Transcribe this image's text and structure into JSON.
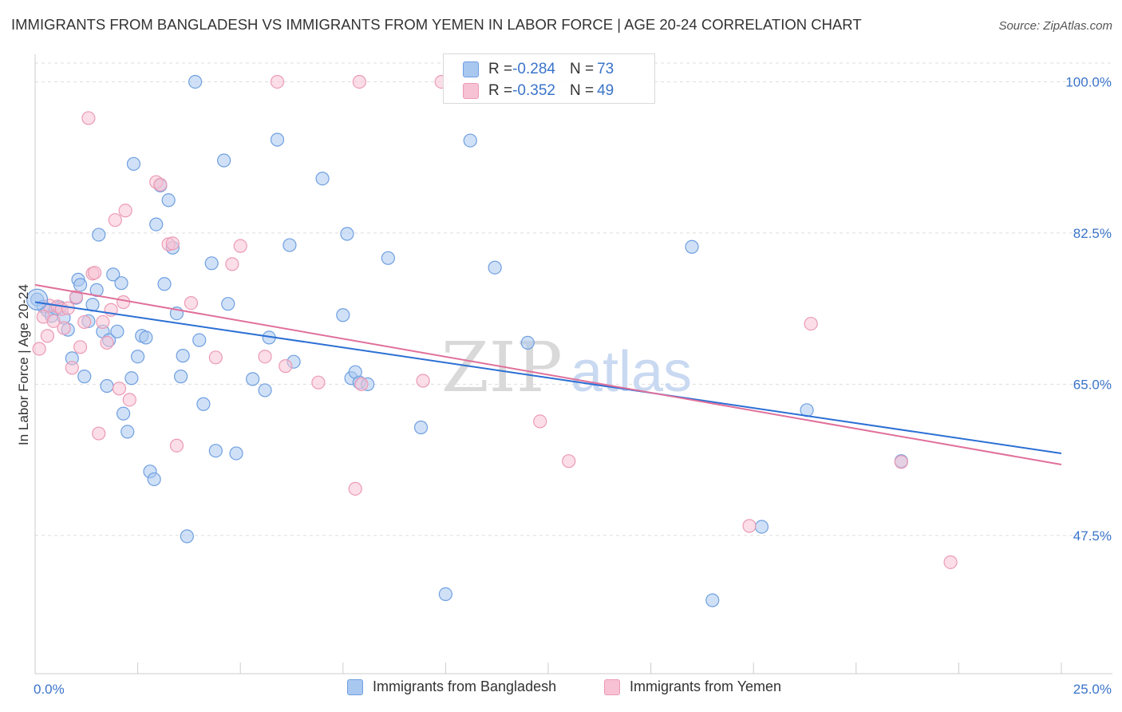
{
  "title": "IMMIGRANTS FROM BANGLADESH VS IMMIGRANTS FROM YEMEN IN LABOR FORCE | AGE 20-24 CORRELATION CHART",
  "source": "Source: ZipAtlas.com",
  "watermark": {
    "zip": "ZIP",
    "atlas": "atlas"
  },
  "legend": {
    "rows": [
      {
        "r_label": "R = ",
        "r_value": "-0.284",
        "n_label": "N = ",
        "n_value": "73"
      },
      {
        "r_label": "R = ",
        "r_value": "-0.352",
        "n_label": "N = ",
        "n_value": "49"
      }
    ]
  },
  "chart_data": {
    "type": "scatter",
    "ylabel": "In Labor Force | Age 20-24",
    "xlim": [
      0,
      25
    ],
    "ylim": [
      31.5,
      103
    ],
    "x_tick_labels": [
      {
        "value": 0,
        "label": "0.0%"
      },
      {
        "value": 25,
        "label": "25.0%"
      }
    ],
    "y_ticks": [
      {
        "value": 100,
        "label": "100.0%"
      },
      {
        "value": 82.5,
        "label": "82.5%"
      },
      {
        "value": 65,
        "label": "65.0%"
      },
      {
        "value": 47.5,
        "label": "47.5%"
      }
    ],
    "grid": "horizontal dashed",
    "series": [
      {
        "name": "Immigrants from Bangladesh",
        "color": "#6f9fe0",
        "fill": "#a9c8f0",
        "trend_color": "#2b6fd4",
        "trend": {
          "x0": 0,
          "y0": 74.5,
          "x1": 25,
          "y1": 57.0
        },
        "points": [
          [
            0.05,
            74.8
          ],
          [
            0.2,
            74.0
          ],
          [
            0.3,
            73.5
          ],
          [
            0.4,
            72.9
          ],
          [
            0.5,
            73.8
          ],
          [
            0.6,
            73.9
          ],
          [
            0.7,
            72.7
          ],
          [
            0.8,
            71.3
          ],
          [
            0.9,
            68.0
          ],
          [
            1.0,
            75.0
          ],
          [
            1.05,
            77.1
          ],
          [
            1.1,
            76.5
          ],
          [
            1.2,
            65.9
          ],
          [
            1.3,
            72.3
          ],
          [
            1.4,
            74.2
          ],
          [
            1.5,
            75.9
          ],
          [
            1.55,
            82.3
          ],
          [
            1.65,
            71.1
          ],
          [
            1.75,
            64.8
          ],
          [
            1.8,
            70.1
          ],
          [
            1.9,
            77.7
          ],
          [
            2.0,
            71.1
          ],
          [
            2.1,
            76.7
          ],
          [
            2.15,
            61.6
          ],
          [
            2.25,
            59.5
          ],
          [
            2.35,
            65.7
          ],
          [
            2.4,
            90.5
          ],
          [
            2.5,
            68.2
          ],
          [
            2.6,
            70.6
          ],
          [
            2.7,
            70.4
          ],
          [
            2.8,
            54.9
          ],
          [
            2.9,
            54.0
          ],
          [
            2.95,
            83.5
          ],
          [
            3.05,
            88.0
          ],
          [
            3.15,
            76.6
          ],
          [
            3.25,
            86.3
          ],
          [
            3.35,
            80.8
          ],
          [
            3.45,
            73.2
          ],
          [
            3.55,
            65.9
          ],
          [
            3.6,
            68.3
          ],
          [
            3.7,
            47.4
          ],
          [
            3.9,
            100.0
          ],
          [
            4.0,
            70.1
          ],
          [
            4.1,
            62.7
          ],
          [
            4.3,
            79.0
          ],
          [
            4.4,
            57.3
          ],
          [
            4.6,
            90.9
          ],
          [
            4.7,
            74.3
          ],
          [
            4.9,
            57.0
          ],
          [
            5.3,
            65.6
          ],
          [
            5.6,
            64.3
          ],
          [
            5.7,
            70.4
          ],
          [
            5.9,
            93.3
          ],
          [
            6.2,
            81.1
          ],
          [
            6.3,
            67.6
          ],
          [
            7.0,
            88.8
          ],
          [
            7.5,
            73.0
          ],
          [
            7.6,
            82.4
          ],
          [
            7.7,
            65.7
          ],
          [
            7.8,
            66.4
          ],
          [
            7.9,
            65.2
          ],
          [
            8.1,
            65.0
          ],
          [
            8.6,
            79.6
          ],
          [
            9.4,
            60.0
          ],
          [
            10.0,
            40.7
          ],
          [
            10.6,
            93.2
          ],
          [
            11.2,
            78.5
          ],
          [
            12.0,
            69.8
          ],
          [
            16.0,
            80.9
          ],
          [
            16.5,
            40.0
          ],
          [
            17.7,
            48.5
          ],
          [
            18.8,
            62.0
          ],
          [
            21.1,
            56.1
          ]
        ]
      },
      {
        "name": "Immigrants from Yemen",
        "color": "#ec9ab5",
        "fill": "#f7c2d3",
        "trend_color": "#e0709a",
        "trend": {
          "x0": 0,
          "y0": 76.5,
          "x1": 25,
          "y1": 55.7
        },
        "points": [
          [
            0.1,
            69.1
          ],
          [
            0.2,
            72.8
          ],
          [
            0.3,
            70.6
          ],
          [
            0.35,
            74.1
          ],
          [
            0.45,
            72.3
          ],
          [
            0.55,
            74.0
          ],
          [
            0.65,
            73.7
          ],
          [
            0.7,
            71.5
          ],
          [
            0.8,
            73.8
          ],
          [
            0.9,
            66.9
          ],
          [
            1.0,
            75.1
          ],
          [
            1.1,
            69.3
          ],
          [
            1.2,
            72.2
          ],
          [
            1.3,
            95.8
          ],
          [
            1.4,
            77.8
          ],
          [
            1.45,
            77.9
          ],
          [
            1.55,
            59.3
          ],
          [
            1.65,
            72.2
          ],
          [
            1.75,
            69.8
          ],
          [
            1.85,
            73.6
          ],
          [
            1.95,
            84.0
          ],
          [
            2.05,
            64.5
          ],
          [
            2.15,
            74.5
          ],
          [
            2.2,
            85.1
          ],
          [
            2.3,
            63.2
          ],
          [
            2.95,
            88.4
          ],
          [
            3.05,
            88.1
          ],
          [
            3.25,
            81.2
          ],
          [
            3.35,
            81.3
          ],
          [
            3.45,
            57.9
          ],
          [
            3.8,
            74.4
          ],
          [
            4.4,
            68.1
          ],
          [
            4.8,
            78.9
          ],
          [
            5.0,
            81.0
          ],
          [
            5.6,
            68.2
          ],
          [
            5.9,
            100.0
          ],
          [
            6.1,
            67.1
          ],
          [
            6.9,
            65.2
          ],
          [
            7.8,
            52.9
          ],
          [
            7.9,
            100.0
          ],
          [
            7.95,
            65.0
          ],
          [
            9.45,
            65.4
          ],
          [
            9.9,
            100.0
          ],
          [
            12.3,
            60.7
          ],
          [
            13.0,
            56.1
          ],
          [
            17.4,
            48.6
          ],
          [
            18.9,
            72.0
          ],
          [
            21.1,
            56.0
          ],
          [
            22.3,
            44.4
          ]
        ]
      }
    ]
  }
}
